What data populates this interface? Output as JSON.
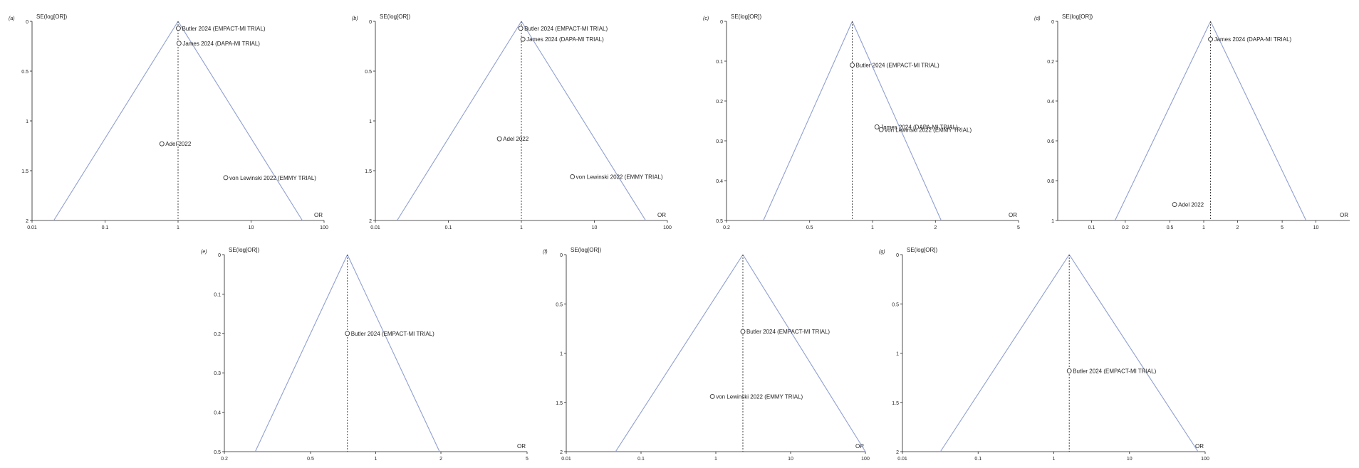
{
  "chart_data": [
    {
      "type": "scatter",
      "panel_label": "(a)",
      "ylabel": "SE(log[OR])",
      "xlabel": "OR",
      "x_scale": "log",
      "xlim": [
        0.01,
        100
      ],
      "xticks": [
        "0.01",
        "0.1",
        "1",
        "10",
        "100"
      ],
      "y_reversed": true,
      "ylim": [
        0,
        2
      ],
      "yticks": [
        "0",
        "0.5",
        "1",
        "1.5",
        "2"
      ],
      "pooled_or": 1.0,
      "points": [
        {
          "label": "Butler 2024 (EMPACT-MI TRIAL)",
          "x": 1.01,
          "y": 0.07
        },
        {
          "label": "James 2024 (DAPA-MI TRIAL)",
          "x": 1.03,
          "y": 0.22
        },
        {
          "label": "Adel 2022",
          "x": 0.6,
          "y": 1.23
        },
        {
          "label": "von Lewinski 2022 (EMMY TRIAL)",
          "x": 4.5,
          "y": 1.57
        }
      ]
    },
    {
      "type": "scatter",
      "panel_label": "(b)",
      "ylabel": "SE(log[OR])",
      "xlabel": "OR",
      "x_scale": "log",
      "xlim": [
        0.01,
        100
      ],
      "xticks": [
        "0.01",
        "0.1",
        "1",
        "10",
        "100"
      ],
      "y_reversed": true,
      "ylim": [
        0,
        2
      ],
      "yticks": [
        "0",
        "0.5",
        "1",
        "1.5",
        "2"
      ],
      "pooled_or": 1.0,
      "points": [
        {
          "label": "Butler 2024 (EMPACT-MI TRIAL)",
          "x": 0.98,
          "y": 0.07
        },
        {
          "label": "James 2024 (DAPA-MI TRIAL)",
          "x": 1.05,
          "y": 0.18
        },
        {
          "label": "Adel 2022",
          "x": 0.5,
          "y": 1.18
        },
        {
          "label": "von Lewinski 2022 (EMMY TRIAL)",
          "x": 5.0,
          "y": 1.56
        }
      ]
    },
    {
      "type": "scatter",
      "panel_label": "(c)",
      "ylabel": "SE(log[OR])",
      "xlabel": "OR",
      "x_scale": "log",
      "xlim": [
        0.2,
        5
      ],
      "xticks": [
        "0.2",
        "0.5",
        "1",
        "2",
        "5"
      ],
      "y_reversed": true,
      "ylim": [
        0,
        0.5
      ],
      "yticks": [
        "0",
        "0.1",
        "0.2",
        "0.3",
        "0.4",
        "0.5"
      ],
      "pooled_or": 0.8,
      "points": [
        {
          "label": "Butler 2024 (EMPACT-MI TRIAL)",
          "x": 0.8,
          "y": 0.11
        },
        {
          "label": "James 2024 (DAPA-MI TRIAL)",
          "x": 1.05,
          "y": 0.265
        },
        {
          "label": "von Lewinski 2022 (EMMY TRIAL)",
          "x": 1.1,
          "y": 0.272
        }
      ]
    },
    {
      "type": "scatter",
      "panel_label": "(d)",
      "ylabel": "SE(log[OR])",
      "xlabel": "OR",
      "x_scale": "log",
      "xlim": [
        0.05,
        20
      ],
      "xticks": [
        "0.1",
        "0.2",
        "0.5",
        "1",
        "2",
        "5",
        "10"
      ],
      "y_reversed": true,
      "ylim": [
        0,
        1
      ],
      "yticks": [
        "0",
        "0.2",
        "0.4",
        "0.6",
        "0.8",
        "1"
      ],
      "pooled_or": 1.15,
      "points": [
        {
          "label": "James 2024 (DAPA-MI TRIAL)",
          "x": 1.15,
          "y": 0.09
        },
        {
          "label": "Adel 2022",
          "x": 0.55,
          "y": 0.92
        }
      ]
    },
    {
      "type": "scatter",
      "panel_label": "(e)",
      "ylabel": "SE(log[OR])",
      "xlabel": "OR",
      "x_scale": "log",
      "xlim": [
        0.2,
        5
      ],
      "xticks": [
        "0.2",
        "0.5",
        "1",
        "2",
        "5"
      ],
      "y_reversed": true,
      "ylim": [
        0,
        0.5
      ],
      "yticks": [
        "0",
        "0.1",
        "0.2",
        "0.3",
        "0.4",
        "0.5"
      ],
      "pooled_or": 0.74,
      "points": [
        {
          "label": "Butler 2024 (EMPACT-MI TRIAL)",
          "x": 0.74,
          "y": 0.2
        }
      ]
    },
    {
      "type": "scatter",
      "panel_label": "(f)",
      "ylabel": "SE(log[OR])",
      "xlabel": "OR",
      "x_scale": "log",
      "xlim": [
        0.01,
        100
      ],
      "xticks": [
        "0.01",
        "0.1",
        "1",
        "10",
        "100"
      ],
      "y_reversed": true,
      "ylim": [
        0,
        2
      ],
      "yticks": [
        "0",
        "0.5",
        "1",
        "1.5",
        "2"
      ],
      "pooled_or": 2.3,
      "points": [
        {
          "label": "Butler 2024 (EMPACT-MI TRIAL)",
          "x": 2.3,
          "y": 0.78
        },
        {
          "label": "von Lewinski 2022 (EMMY TRIAL)",
          "x": 0.9,
          "y": 1.44
        }
      ]
    },
    {
      "type": "scatter",
      "panel_label": "(g)",
      "ylabel": "SE(log[OR])",
      "xlabel": "OR",
      "x_scale": "log",
      "xlim": [
        0.01,
        100
      ],
      "xticks": [
        "0.01",
        "0.1",
        "1",
        "10",
        "100"
      ],
      "y_reversed": true,
      "ylim": [
        0,
        2
      ],
      "yticks": [
        "0",
        "0.5",
        "1",
        "1.5",
        "2"
      ],
      "pooled_or": 1.6,
      "points": [
        {
          "label": "Butler 2024 (EMPACT-MI TRIAL)",
          "x": 1.6,
          "y": 1.18
        }
      ]
    }
  ]
}
